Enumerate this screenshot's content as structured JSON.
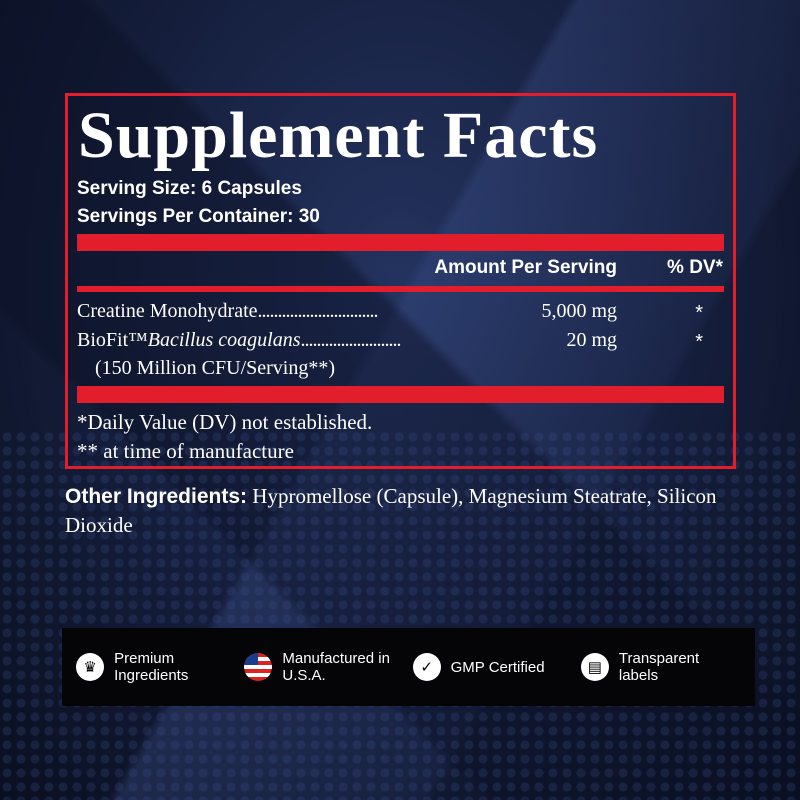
{
  "panel": {
    "title": "Supplement Facts",
    "serving_size": "Serving Size: 6 Capsules",
    "servings_per_container": "Servings Per Container: 30",
    "header_amount": "Amount Per Serving",
    "header_dv": "% DV*",
    "ingredients": [
      {
        "name": "Creatine Monohydrate",
        "amount": "5,000 mg",
        "dv": "*"
      },
      {
        "name": "BioFit™",
        "name_italic": "Bacillus coagulans",
        "amount": "20 mg",
        "dv": "*",
        "note": "(150 Million CFU/Serving**)"
      }
    ],
    "footnotes": [
      "*Daily Value (DV) not established.",
      "** at time of manufacture"
    ]
  },
  "other": {
    "label": "Other Ingredients:",
    "text": " Hypromellose (Capsule), Magnesium Steatrate, Silicon Dioxide"
  },
  "badges": [
    {
      "icon": "crown-icon",
      "label": "Premium Ingredients"
    },
    {
      "icon": "us-flag-icon",
      "label": "Manufactured in U.S.A."
    },
    {
      "icon": "badge-check-icon",
      "label": "GMP Certified"
    },
    {
      "icon": "label-icon",
      "label": "Transparent labels"
    }
  ],
  "colors": {
    "accent": "#e31e2c",
    "background": "#141d3a"
  }
}
